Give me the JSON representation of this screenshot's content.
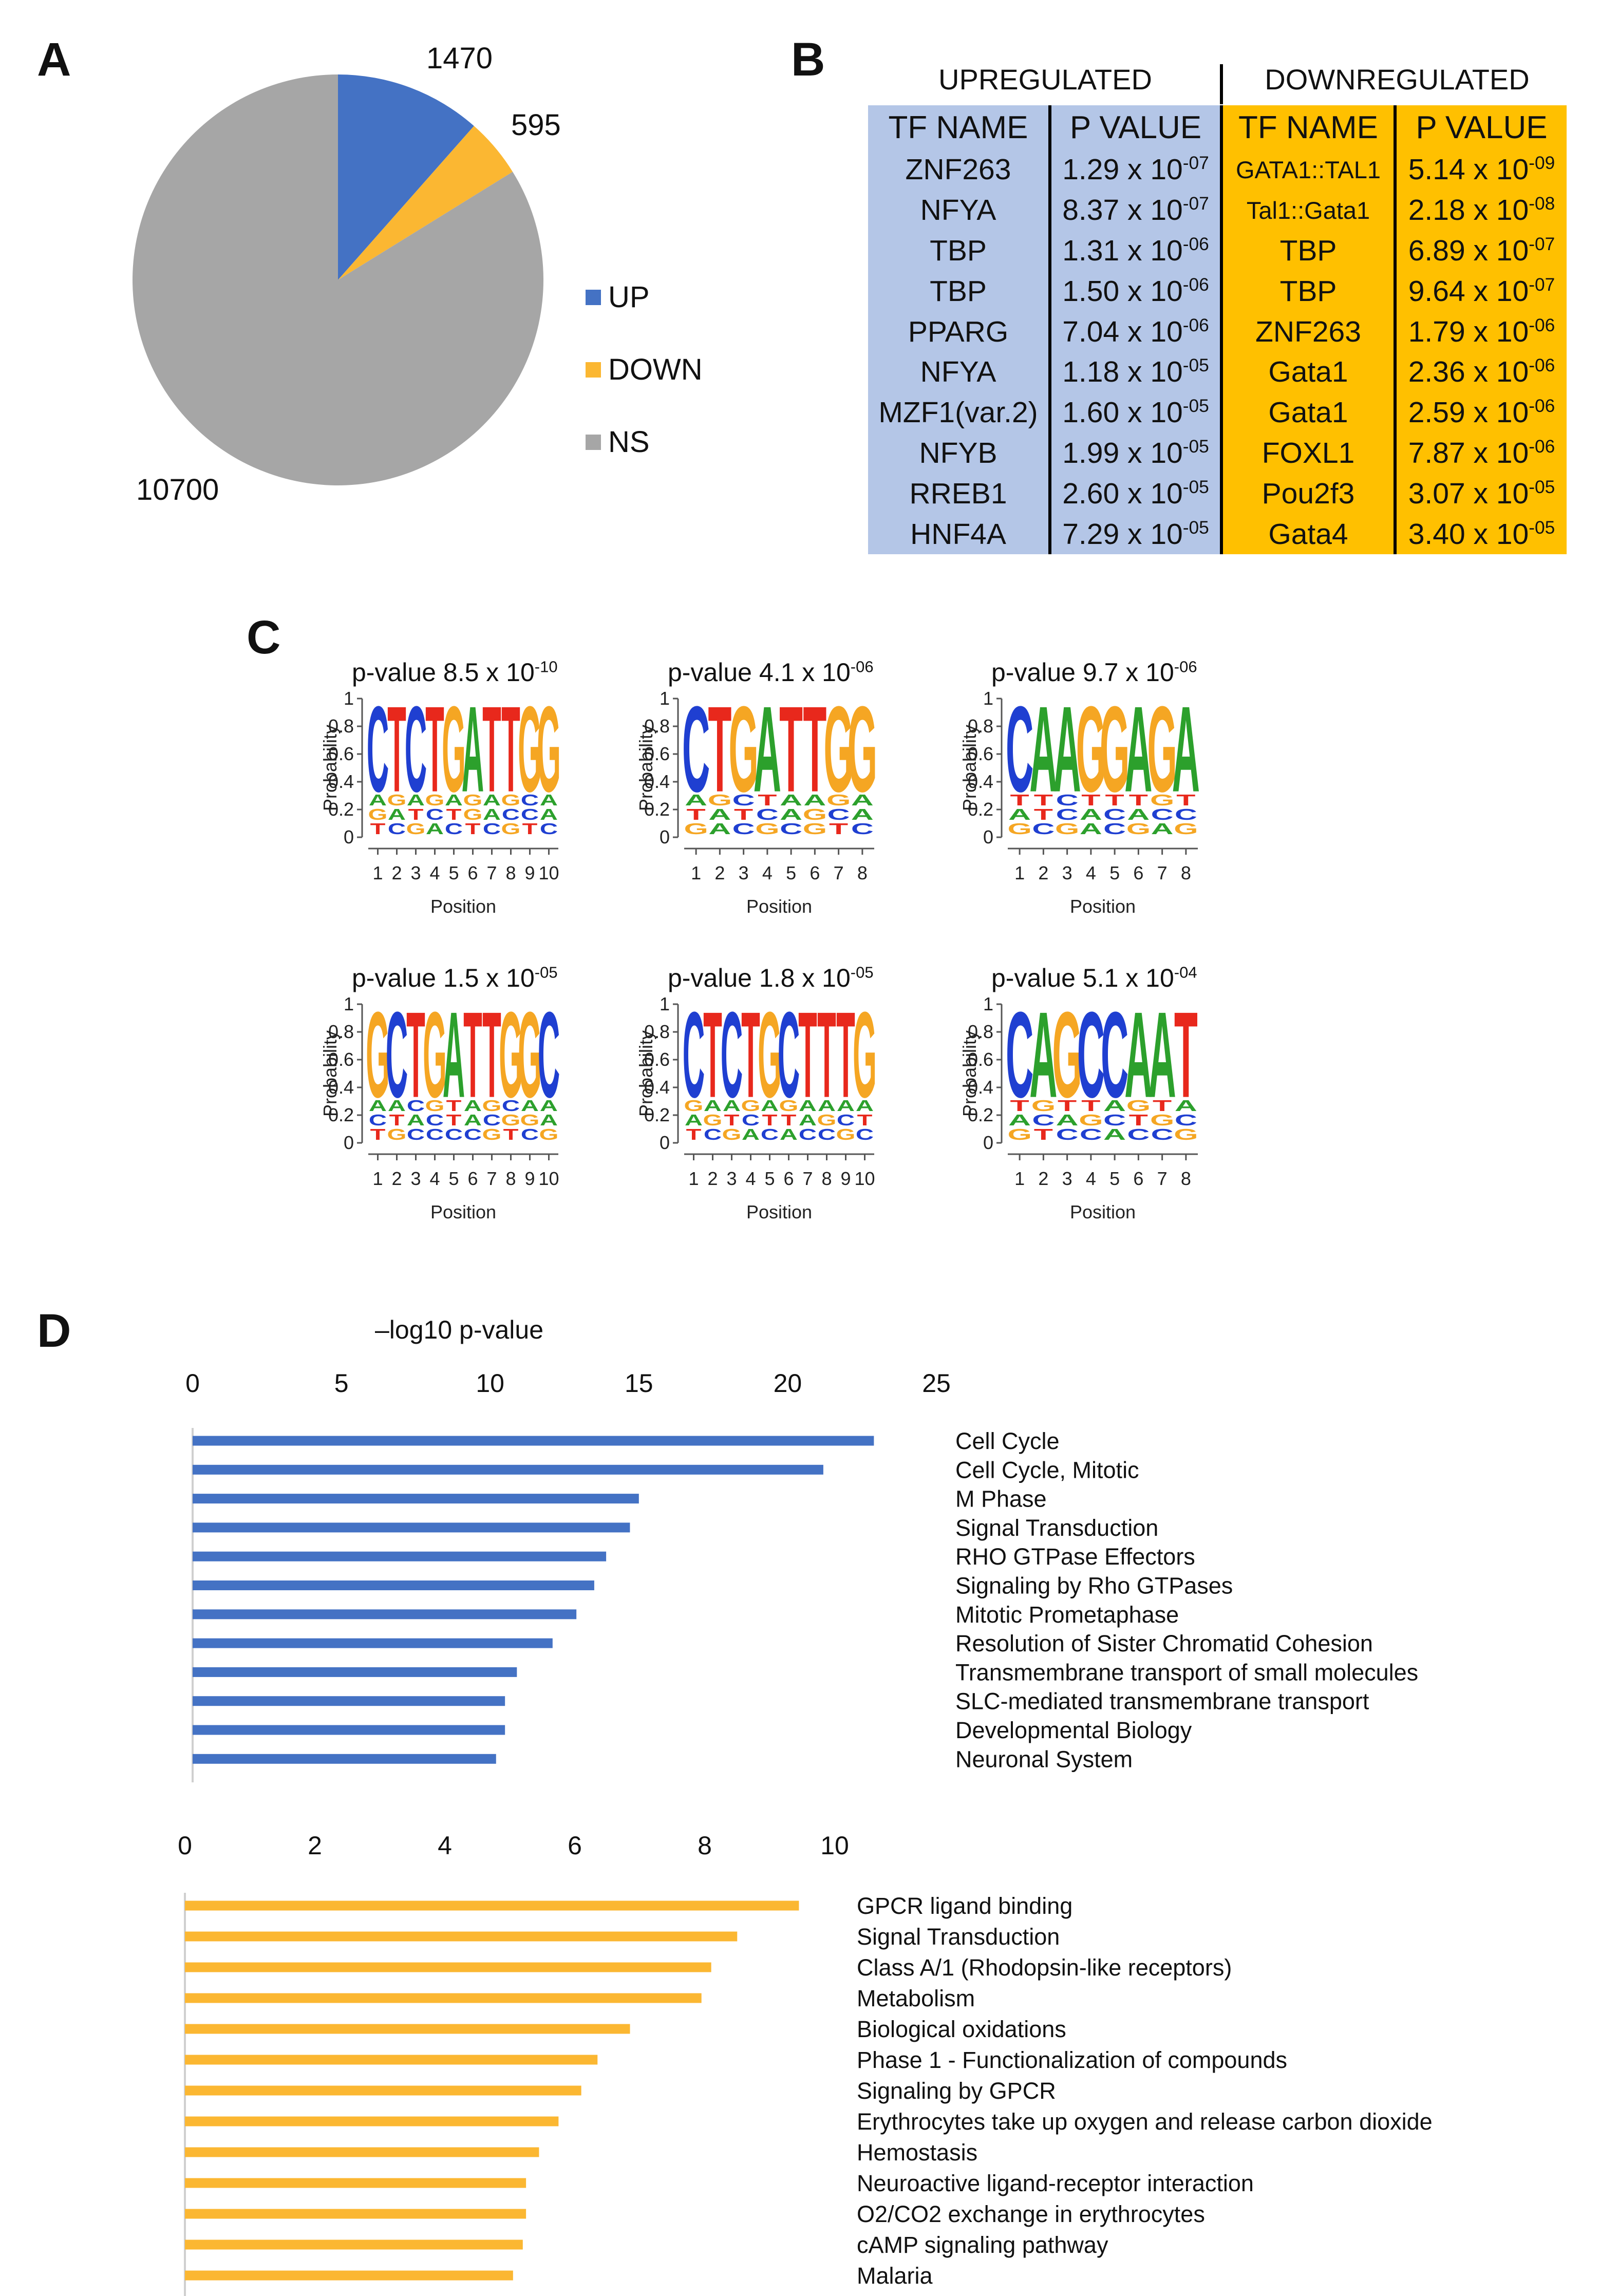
{
  "panels": {
    "a": "A",
    "b": "B",
    "c": "C",
    "d": "D"
  },
  "pie": {
    "slices": [
      {
        "key": "up",
        "label": "UP",
        "value": 1470,
        "color": "#4472c4"
      },
      {
        "key": "down",
        "label": "DOWN",
        "value": 595,
        "color": "#fbb732"
      },
      {
        "key": "ns",
        "label": "NS",
        "value": 10700,
        "color": "#a6a6a6"
      }
    ],
    "value_labels": {
      "up": "1470",
      "down": "595",
      "ns": "10700"
    }
  },
  "tf_table": {
    "group_up": "UPREGULATED",
    "group_down": "DOWNREGULATED",
    "col_tf": "TF NAME",
    "col_p": "P VALUE",
    "up": [
      {
        "tf": "ZNF263",
        "mant": "1.29 x 10",
        "exp": "-07"
      },
      {
        "tf": "NFYA",
        "mant": "8.37 x 10",
        "exp": "-07"
      },
      {
        "tf": "TBP",
        "mant": "1.31 x 10",
        "exp": "-06"
      },
      {
        "tf": "TBP",
        "mant": "1.50 x 10",
        "exp": "-06"
      },
      {
        "tf": "PPARG",
        "mant": "7.04 x 10",
        "exp": "-06"
      },
      {
        "tf": "NFYA",
        "mant": "1.18 x 10",
        "exp": "-05"
      },
      {
        "tf": "MZF1(var.2)",
        "mant": "1.60 x 10",
        "exp": "-05"
      },
      {
        "tf": "NFYB",
        "mant": "1.99 x 10",
        "exp": "-05"
      },
      {
        "tf": "RREB1",
        "mant": "2.60 x 10",
        "exp": "-05"
      },
      {
        "tf": "HNF4A",
        "mant": "7.29 x 10",
        "exp": "-05"
      }
    ],
    "down": [
      {
        "tf": "GATA1::TAL1",
        "mant": "5.14 x 10",
        "exp": "-09"
      },
      {
        "tf": "Tal1::Gata1",
        "mant": "2.18 x 10",
        "exp": "-08"
      },
      {
        "tf": "TBP",
        "mant": "6.89 x 10",
        "exp": "-07"
      },
      {
        "tf": "TBP",
        "mant": "9.64 x 10",
        "exp": "-07"
      },
      {
        "tf": "ZNF263",
        "mant": "1.79 x 10",
        "exp": "-06"
      },
      {
        "tf": "Gata1",
        "mant": "2.36 x 10",
        "exp": "-06"
      },
      {
        "tf": "Gata1",
        "mant": "2.59 x 10",
        "exp": "-06"
      },
      {
        "tf": "FOXL1",
        "mant": "7.87 x 10",
        "exp": "-06"
      },
      {
        "tf": "Pou2f3",
        "mant": "3.07 x 10",
        "exp": "-05"
      },
      {
        "tf": "Gata4",
        "mant": "3.40 x 10",
        "exp": "-05"
      }
    ]
  },
  "motifs": {
    "ylabel": "Probability",
    "xlabel": "Position",
    "yticks": [
      "0",
      "0.2",
      "0.4",
      "0.6",
      "0.8",
      "1"
    ],
    "colors": {
      "A": "#2ca02c",
      "C": "#1f3fd1",
      "G": "#f5a623",
      "T": "#e8281c"
    },
    "items": [
      {
        "title": "p-value 8.5 x 10",
        "exp": "-10",
        "consensus": "CTCTGATTGG",
        "sub1": "TCGACTCGTC",
        "sub2": "GATCTGACCA",
        "sub3": "AGAGAGAGCA",
        "positions": [
          "1",
          "2",
          "3",
          "4",
          "5",
          "6",
          "7",
          "8",
          "9",
          "10"
        ]
      },
      {
        "title": "p-value 4.1 x 10",
        "exp": "-06",
        "consensus": "CTGATTGG",
        "sub1": "GACGCGTC",
        "sub2": "TATCAGCA",
        "sub3": "AGCTAAGA",
        "positions": [
          "1",
          "2",
          "3",
          "4",
          "5",
          "6",
          "7",
          "8"
        ]
      },
      {
        "title": "p-value 9.7 x 10",
        "exp": "-06",
        "consensus": "CAAGGAGA",
        "sub1": "GCGACGAG",
        "sub2": "ATCACACC",
        "sub3": "TTCTTTGT",
        "positions": [
          "1",
          "2",
          "3",
          "4",
          "5",
          "6",
          "7",
          "8"
        ]
      },
      {
        "title": "p-value 1.5 x 10",
        "exp": "-05",
        "consensus": "GCTGATTGGC",
        "sub1": "TGCCCCGTCG",
        "sub2": "CTACTACGGA",
        "sub3": "AACGTAGCAA",
        "positions": [
          "1",
          "2",
          "3",
          "4",
          "5",
          "6",
          "7",
          "8",
          "9",
          "10"
        ]
      },
      {
        "title": "p-value 1.8 x 10",
        "exp": "-05",
        "consensus": "CTCTGCTTTG",
        "sub1": "TCGACACCGC",
        "sub2": "AGTCTTAGCT",
        "sub3": "GAAGAGAAAA",
        "positions": [
          "1",
          "2",
          "3",
          "4",
          "5",
          "6",
          "7",
          "8",
          "9",
          "10"
        ]
      },
      {
        "title": "p-value 5.1 x 10",
        "exp": "-04",
        "consensus": "CAGCCAAT",
        "sub1": "GTCCACCG",
        "sub2": "ACAGCTGC",
        "sub3": "TGTTAGTA",
        "positions": [
          "1",
          "2",
          "3",
          "4",
          "5",
          "6",
          "7",
          "8"
        ]
      }
    ]
  },
  "chart_data": [
    {
      "type": "bar",
      "orientation": "horizontal",
      "title": "–log10 p-value",
      "xlim": [
        0,
        25
      ],
      "xticks": [
        "0",
        "5",
        "10",
        "15",
        "20",
        "25"
      ],
      "color": "#4472c4",
      "categories": [
        "Cell Cycle",
        "Cell Cycle, Mitotic",
        "M Phase",
        "Signal Transduction",
        "RHO GTPase Effectors",
        "Signaling by Rho GTPases",
        "Mitotic Prometaphase",
        "Resolution of Sister Chromatid Cohesion",
        "Transmembrane transport of small molecules",
        "SLC-mediated transmembrane transport",
        "Developmental Biology",
        "Neuronal System"
      ],
      "values": [
        22.9,
        21.2,
        15.0,
        14.7,
        13.9,
        13.5,
        12.9,
        12.1,
        10.9,
        10.5,
        10.5,
        10.2
      ]
    },
    {
      "type": "bar",
      "orientation": "horizontal",
      "xlim": [
        0,
        10
      ],
      "xticks": [
        "0",
        "2",
        "4",
        "6",
        "8",
        "10"
      ],
      "color": "#fbb732",
      "categories": [
        "GPCR ligand binding",
        "Signal Transduction",
        "Class A/1 (Rhodopsin-like receptors)",
        "Metabolism",
        "Biological oxidations",
        "Phase 1 - Functionalization of compounds",
        "Signaling by GPCR",
        "Erythrocytes take up oxygen and release carbon dioxide",
        "Hemostasis",
        "Neuroactive ligand-receptor interaction",
        "O2/CO2 exchange in erythrocytes",
        "cAMP signaling pathway",
        "Malaria"
      ],
      "values": [
        9.45,
        8.5,
        8.1,
        7.95,
        6.85,
        6.35,
        6.1,
        5.75,
        5.45,
        5.25,
        5.25,
        5.2,
        5.05
      ]
    }
  ]
}
